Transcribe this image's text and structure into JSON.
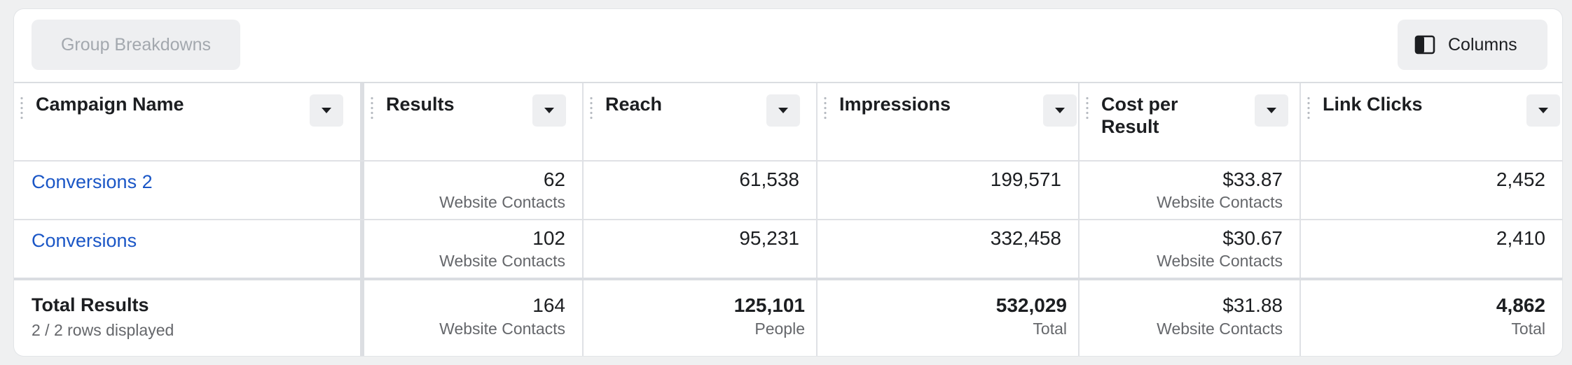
{
  "toolbar": {
    "group_breakdowns_label": "Group Breakdowns",
    "columns_label": "Columns",
    "columns_icon": "columns-icon"
  },
  "columns": [
    {
      "key": "campaign",
      "label": "Campaign Name"
    },
    {
      "key": "results",
      "label": "Results"
    },
    {
      "key": "reach",
      "label": "Reach"
    },
    {
      "key": "impressions",
      "label": "Impressions"
    },
    {
      "key": "cost",
      "label_line1": "Cost per",
      "label_line2": "Result"
    },
    {
      "key": "clicks",
      "label": "Link Clicks"
    }
  ],
  "rows": [
    {
      "campaign": "Conversions 2",
      "results": "62",
      "results_sub": "Website Contacts",
      "reach": "61,538",
      "impressions": "199,571",
      "cost": "$33.87",
      "cost_sub": "Website Contacts",
      "clicks": "2,452"
    },
    {
      "campaign": "Conversions",
      "results": "102",
      "results_sub": "Website Contacts",
      "reach": "95,231",
      "impressions": "332,458",
      "cost": "$30.67",
      "cost_sub": "Website Contacts",
      "clicks": "2,410"
    }
  ],
  "totals": {
    "title": "Total Results",
    "subtitle": "2 / 2 rows displayed",
    "results": "164",
    "results_sub": "Website Contacts",
    "reach": "125,101",
    "reach_sub": "People",
    "impressions": "532,029",
    "impressions_sub": "Total",
    "cost": "$31.88",
    "cost_sub": "Website Contacts",
    "clicks": "4,862",
    "clicks_sub": "Total"
  },
  "colors": {
    "link": "#1a56c6",
    "muted": "#65676b",
    "button_bg": "#eeeff1"
  }
}
